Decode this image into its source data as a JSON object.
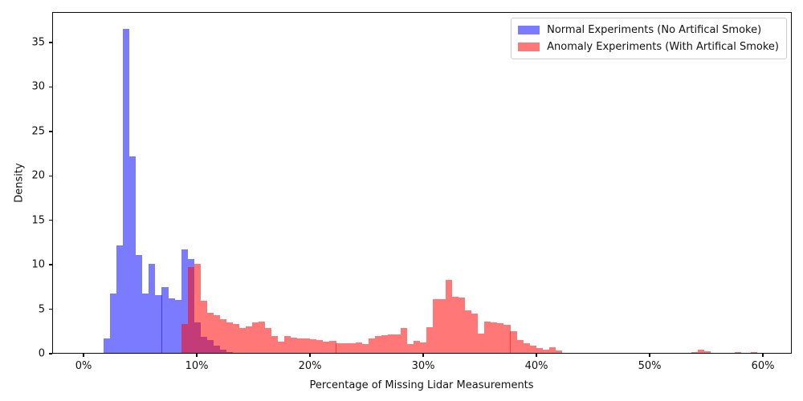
{
  "figure": {
    "background_color": "#ffffff",
    "text_color": "#111111"
  },
  "chart_data": {
    "type": "bar",
    "subtype": "overlapping-histogram",
    "title": "",
    "xlabel": "Percentage of Missing Lidar Measurements",
    "ylabel": "Density",
    "xlim": [
      -2.77,
      62.55
    ],
    "ylim": [
      0,
      38.43
    ],
    "grid": "off",
    "bin_width_pct": 0.571,
    "xticks": [
      {
        "value": 0,
        "label": "0%"
      },
      {
        "value": 10,
        "label": "10%"
      },
      {
        "value": 20,
        "label": "20%"
      },
      {
        "value": 30,
        "label": "30%"
      },
      {
        "value": 40,
        "label": "40%"
      },
      {
        "value": 50,
        "label": "50%"
      },
      {
        "value": 60,
        "label": "60%"
      }
    ],
    "yticks": [
      {
        "value": 0,
        "label": "0"
      },
      {
        "value": 5,
        "label": "5"
      },
      {
        "value": 10,
        "label": "10"
      },
      {
        "value": 15,
        "label": "15"
      },
      {
        "value": 20,
        "label": "20"
      },
      {
        "value": 25,
        "label": "25"
      },
      {
        "value": 30,
        "label": "30"
      },
      {
        "value": 35,
        "label": "35"
      }
    ],
    "legend": {
      "position": "upper right",
      "entries": [
        "Normal Experiments (No Artifical Smoke)",
        "Anomaly Experiments (With Artifical Smoke)"
      ]
    },
    "series": [
      {
        "name": "Normal Experiments (No Artifical Smoke)",
        "legend_color": "#7a7af5",
        "fill": "rgba(0,2,255,0.52)",
        "bars": [
          [
            1.7,
            1.8
          ],
          [
            2.27,
            6.9
          ],
          [
            2.84,
            12.3
          ],
          [
            3.41,
            36.6
          ],
          [
            3.98,
            22.3
          ],
          [
            4.55,
            11.2
          ],
          [
            5.13,
            6.9
          ],
          [
            5.7,
            10.2
          ],
          [
            6.27,
            6.7
          ],
          [
            6.84,
            7.6
          ],
          [
            7.41,
            6.3
          ],
          [
            7.98,
            6.1
          ],
          [
            8.55,
            11.8
          ],
          [
            9.12,
            10.7
          ],
          [
            9.69,
            3.6
          ],
          [
            10.26,
            2.0
          ],
          [
            10.83,
            1.6
          ],
          [
            11.4,
            1.0
          ],
          [
            11.97,
            0.55
          ],
          [
            12.54,
            0.3
          ],
          [
            13.11,
            0.2
          ],
          [
            13.68,
            0.15
          ],
          [
            14.25,
            0.1
          ]
        ]
      },
      {
        "name": "Anomaly Experiments (With Artifical Smoke)",
        "legend_color": "#f87f7f",
        "fill": "rgba(255,8,8,0.55)",
        "bars": [
          [
            8.55,
            3.4
          ],
          [
            9.12,
            9.8
          ],
          [
            9.69,
            10.15
          ],
          [
            10.26,
            6.0
          ],
          [
            10.83,
            4.7
          ],
          [
            11.4,
            4.4
          ],
          [
            11.97,
            3.95
          ],
          [
            12.54,
            3.65
          ],
          [
            13.11,
            3.4
          ],
          [
            13.68,
            3.0
          ],
          [
            14.25,
            3.2
          ],
          [
            14.82,
            3.6
          ],
          [
            15.39,
            3.7
          ],
          [
            15.96,
            3.0
          ],
          [
            16.53,
            2.1
          ],
          [
            17.1,
            1.45
          ],
          [
            17.67,
            2.05
          ],
          [
            18.24,
            1.9
          ],
          [
            18.81,
            1.8
          ],
          [
            19.38,
            1.8
          ],
          [
            19.95,
            1.7
          ],
          [
            20.52,
            1.6
          ],
          [
            21.09,
            1.45
          ],
          [
            21.66,
            1.5
          ],
          [
            22.23,
            1.3
          ],
          [
            22.8,
            1.3
          ],
          [
            23.37,
            1.25
          ],
          [
            23.94,
            1.35
          ],
          [
            24.51,
            1.15
          ],
          [
            25.08,
            1.8
          ],
          [
            25.65,
            2.05
          ],
          [
            26.22,
            2.2
          ],
          [
            26.79,
            2.3
          ],
          [
            27.36,
            2.3
          ],
          [
            27.93,
            2.95
          ],
          [
            28.5,
            1.15
          ],
          [
            29.07,
            1.5
          ],
          [
            29.64,
            1.35
          ],
          [
            30.21,
            3.1
          ],
          [
            30.78,
            6.2
          ],
          [
            31.35,
            6.2
          ],
          [
            31.92,
            8.35
          ],
          [
            32.49,
            6.5
          ],
          [
            33.06,
            6.4
          ],
          [
            33.63,
            5.0
          ],
          [
            34.2,
            4.6
          ],
          [
            34.77,
            2.35
          ],
          [
            35.34,
            3.7
          ],
          [
            35.91,
            3.6
          ],
          [
            36.48,
            3.5
          ],
          [
            37.05,
            3.3
          ],
          [
            37.62,
            2.6
          ],
          [
            38.19,
            1.65
          ],
          [
            38.76,
            1.3
          ],
          [
            39.33,
            0.95
          ],
          [
            39.9,
            0.7
          ],
          [
            40.47,
            0.55
          ],
          [
            41.04,
            0.8
          ],
          [
            41.61,
            0.45
          ],
          [
            42.18,
            0.2
          ],
          [
            42.75,
            0.15
          ],
          [
            44.46,
            0.15
          ],
          [
            48.17,
            0.15
          ],
          [
            50.79,
            0.1
          ],
          [
            51.36,
            0.15
          ],
          [
            53.64,
            0.3
          ],
          [
            54.21,
            0.5
          ],
          [
            54.78,
            0.35
          ],
          [
            55.92,
            0.2
          ],
          [
            56.49,
            0.2
          ],
          [
            57.42,
            0.25
          ],
          [
            57.99,
            0.2
          ],
          [
            58.89,
            0.25
          ]
        ]
      }
    ]
  }
}
